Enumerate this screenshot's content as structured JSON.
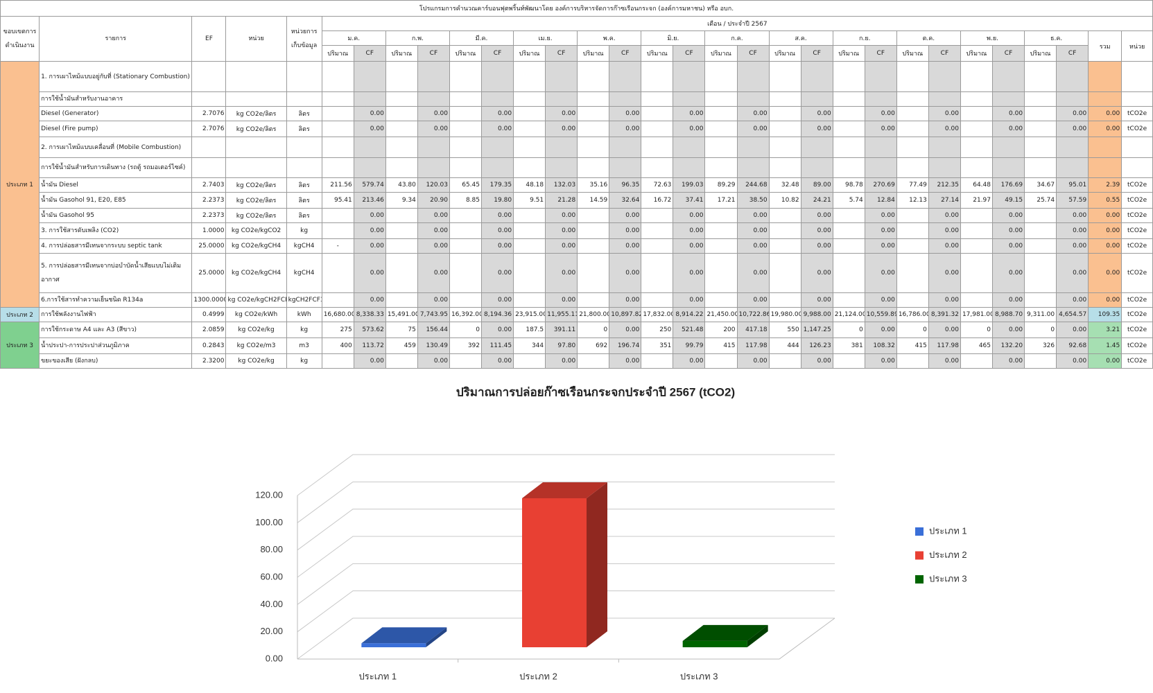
{
  "table": {
    "title": "โปรแกรมการคำนวณคาร์บอนฟุตพริ้นท์พัฒนาโดย องค์การบริหารจัดการก๊าซเรือนกระจก (องค์การมหาชน) หรือ อบก.",
    "period": "เดือน / ประจำปี 2567",
    "headers": {
      "scope": "ขอบเขตการดำเนินงาน",
      "item": "รายการ",
      "ef": "EF",
      "unit": "หน่วย",
      "data_unit": "หน่วยการเก็บข้อมูล",
      "qty": "ปริมาณ",
      "cf": "CF",
      "total": "รวม",
      "total_unit": "หน่วย"
    },
    "months": [
      "ม.ค.",
      "ก.พ.",
      "มี.ค.",
      "เม.ย.",
      "พ.ค.",
      "มิ.ย.",
      "ก.ค.",
      "ส.ค.",
      "ก.ย.",
      "ต.ค.",
      "พ.ย.",
      "ธ.ค."
    ],
    "groups": [
      {
        "scope": "ประเภท 1",
        "rows": [
          {
            "item": "1. การเผาไหม้แบบอยู่กับที่ (Stationary Combustion)"
          },
          {
            "item": "การใช้น้ำมันสำหรับงานอาคาร"
          },
          {
            "item": "Diesel (Generator)",
            "ef": "2.7076",
            "unit": "kg CO2e/ลิตร",
            "data_unit": "ลิตร",
            "qty": [
              null,
              null,
              null,
              null,
              null,
              null,
              null,
              null,
              null,
              null,
              null,
              null
            ],
            "cf": [
              "0.00",
              "0.00",
              "0.00",
              "0.00",
              "0.00",
              "0.00",
              "0.00",
              "0.00",
              "0.00",
              "0.00",
              "0.00",
              "0.00"
            ],
            "total": "0.00",
            "total_unit": "tCO2e"
          },
          {
            "item": "Diesel (Fire pump)",
            "ef": "2.7076",
            "unit": "kg CO2e/ลิตร",
            "data_unit": "ลิตร",
            "qty": [
              null,
              null,
              null,
              null,
              null,
              null,
              null,
              null,
              null,
              null,
              null,
              null
            ],
            "cf": [
              "0.00",
              "0.00",
              "0.00",
              "0.00",
              "0.00",
              "0.00",
              "0.00",
              "0.00",
              "0.00",
              "0.00",
              "0.00",
              "0.00"
            ],
            "total": "0.00",
            "total_unit": "tCO2e"
          },
          {
            "item": "2. การเผาไหม้แบบเคลื่อนที่ (Mobile Combustion)"
          },
          {
            "item": "การใช้น้ำมันสำหรับการเดินทาง (รถตู้ รถมอเตอร์ไซค์)"
          },
          {
            "item": "น้ำมัน Diesel",
            "ef": "2.7403",
            "unit": "kg CO2e/ลิตร",
            "data_unit": "ลิตร",
            "qty": [
              "211.56",
              "43.80",
              "65.45",
              "48.18",
              "35.16",
              "72.63",
              "89.29",
              "32.48",
              "98.78",
              "77.49",
              "64.48",
              "34.67"
            ],
            "cf": [
              "579.74",
              "120.03",
              "179.35",
              "132.03",
              "96.35",
              "199.03",
              "244.68",
              "89.00",
              "270.69",
              "212.35",
              "176.69",
              "95.01"
            ],
            "total": "2.39",
            "total_unit": "tCO2e"
          },
          {
            "item": "น้ำมัน Gasohol 91, E20, E85",
            "ef": "2.2373",
            "unit": "kg CO2e/ลิตร",
            "data_unit": "ลิตร",
            "qty": [
              "95.41",
              "9.34",
              "8.85",
              "9.51",
              "14.59",
              "16.72",
              "17.21",
              "10.82",
              "5.74",
              "12.13",
              "21.97",
              "25.74"
            ],
            "cf": [
              "213.46",
              "20.90",
              "19.80",
              "21.28",
              "32.64",
              "37.41",
              "38.50",
              "24.21",
              "12.84",
              "27.14",
              "49.15",
              "57.59"
            ],
            "total": "0.55",
            "total_unit": "tCO2e"
          },
          {
            "item": "น้ำมัน Gasohol 95",
            "ef": "2.2373",
            "unit": "kg CO2e/ลิตร",
            "data_unit": "ลิตร",
            "qty": [
              null,
              null,
              null,
              null,
              null,
              null,
              null,
              null,
              null,
              null,
              null,
              null
            ],
            "cf": [
              "0.00",
              "0.00",
              "0.00",
              "0.00",
              "0.00",
              "0.00",
              "0.00",
              "0.00",
              "0.00",
              "0.00",
              "0.00",
              "0.00"
            ],
            "total": "0.00",
            "total_unit": "tCO2e"
          },
          {
            "item": "3. การใช้สารดับเพลิง (CO2)",
            "ef": "1.0000",
            "unit": "kg CO2e/kgCO2",
            "data_unit": "kg",
            "qty": [
              null,
              null,
              null,
              null,
              null,
              null,
              null,
              null,
              null,
              null,
              null,
              null
            ],
            "cf": [
              "0.00",
              "0.00",
              "0.00",
              "0.00",
              "0.00",
              "0.00",
              "0.00",
              "0.00",
              "0.00",
              "0.00",
              "0.00",
              "0.00"
            ],
            "total": "0.00",
            "total_unit": "tCO2e"
          },
          {
            "item": "4. การปล่อยสารมีเทนจากระบบ septic tank",
            "ef": "25.0000",
            "unit": "kg CO2e/kgCH4",
            "data_unit": "kgCH4",
            "qty": [
              "-",
              null,
              null,
              null,
              null,
              null,
              null,
              null,
              null,
              null,
              null,
              null
            ],
            "cf": [
              "0.00",
              "0.00",
              "0.00",
              "0.00",
              "0.00",
              "0.00",
              "0.00",
              "0.00",
              "0.00",
              "0.00",
              "0.00",
              "0.00"
            ],
            "total": "0.00",
            "total_unit": "tCO2e"
          },
          {
            "item": "5. การปล่อยสารมีเทนจากบ่อบำบัดน้ำเสียแบบไม่เติมอากาศ",
            "ef": "25.0000",
            "unit": "kg CO2e/kgCH4",
            "data_unit": "kgCH4",
            "qty": [
              null,
              null,
              null,
              null,
              null,
              null,
              null,
              null,
              null,
              null,
              null,
              null
            ],
            "cf": [
              "0.00",
              "0.00",
              "0.00",
              "0.00",
              "0.00",
              "0.00",
              "0.00",
              "0.00",
              "0.00",
              "0.00",
              "0.00",
              "0.00"
            ],
            "total": "0.00",
            "total_unit": "tCO2e"
          },
          {
            "item": "6.การใช้สารทำความเย็นชนิด R134a",
            "ef": "1300.0000",
            "unit": "kg CO2e/kgCH2FCF3",
            "data_unit": "kgCH2FCF3",
            "qty": [
              null,
              null,
              null,
              null,
              null,
              null,
              null,
              null,
              null,
              null,
              null,
              null
            ],
            "cf": [
              "0.00",
              "0.00",
              "0.00",
              "0.00",
              "0.00",
              "0.00",
              "0.00",
              "0.00",
              "0.00",
              "0.00",
              "0.00",
              "0.00"
            ],
            "total": "0.00",
            "total_unit": "tCO2e"
          }
        ]
      },
      {
        "scope": "ประเภท 2",
        "rows": [
          {
            "item": "การใช้พลังงานไฟฟ้า",
            "ef": "0.4999",
            "unit": "kg CO2e/kWh",
            "data_unit": "kWh",
            "qty": [
              "16,680.00",
              "15,491.00",
              "16,392.00",
              "23,915.00",
              "21,800.00",
              "17,832.00",
              "21,450.00",
              "19,980.00",
              "21,124.00",
              "16,786.00",
              "17,981.00",
              "9,311.00"
            ],
            "cf": [
              "8,338.33",
              "7,743.95",
              "8,194.36",
              "11,955.11",
              "10,897.82",
              "8,914.22",
              "10,722.86",
              "9,988.00",
              "10,559.89",
              "8,391.32",
              "8,988.70",
              "4,654.57"
            ],
            "total": "109.35",
            "total_unit": "tCO2e"
          }
        ]
      },
      {
        "scope": "ประเภท 3",
        "rows": [
          {
            "item": "การใช้กระดาษ A4 และ A3 (สีขาว)",
            "ef": "2.0859",
            "unit": "kg CO2e/kg",
            "data_unit": "kg",
            "qty": [
              "275",
              "75",
              "0",
              "187.5",
              "0",
              "250",
              "200",
              "550",
              "0",
              "0",
              "0",
              "0"
            ],
            "cf": [
              "573.62",
              "156.44",
              "0.00",
              "391.11",
              "0.00",
              "521.48",
              "417.18",
              "1,147.25",
              "0.00",
              "0.00",
              "0.00",
              "0.00"
            ],
            "total": "3.21",
            "total_unit": "tCO2e"
          },
          {
            "item": "น้ำประปา-การประปาส่วนภูมิภาค",
            "ef": "0.2843",
            "unit": "kg CO2e/m3",
            "data_unit": "m3",
            "qty": [
              "400",
              "459",
              "392",
              "344",
              "692",
              "351",
              "415",
              "444",
              "381",
              "415",
              "465",
              "326"
            ],
            "cf": [
              "113.72",
              "130.49",
              "111.45",
              "97.80",
              "196.74",
              "99.79",
              "117.98",
              "126.23",
              "108.32",
              "117.98",
              "132.20",
              "92.68"
            ],
            "total": "1.45",
            "total_unit": "tCO2e"
          },
          {
            "item": "ขยะของเสีย (ฝังกลบ)",
            "ef": "2.3200",
            "unit": "kg CO2e/kg",
            "data_unit": "kg",
            "qty": [
              null,
              null,
              null,
              null,
              null,
              null,
              null,
              null,
              null,
              null,
              null,
              null
            ],
            "cf": [
              "0.00",
              "0.00",
              "0.00",
              "0.00",
              "0.00",
              "0.00",
              "0.00",
              "0.00",
              "0.00",
              "0.00",
              "0.00",
              "0.00"
            ],
            "total": "0.00",
            "total_unit": "tCO2e"
          }
        ]
      }
    ]
  },
  "chart_data": {
    "type": "bar",
    "title": "ปริมาณการปล่อยก๊าซเรือนกระจกประจำปี 2567 (tCO2)",
    "categories": [
      "ประเภท 1",
      "ประเภท 2",
      "ประเภท 3"
    ],
    "values": [
      2.94,
      109.35,
      4.66
    ],
    "colors": [
      "#3a6fd8",
      "#e84033",
      "#006400"
    ],
    "ylim": [
      0,
      120
    ],
    "yticks": [
      {
        "value": 0,
        "label": "0.00"
      },
      {
        "value": 20,
        "label": "20.00"
      },
      {
        "value": 40,
        "label": "40.00"
      },
      {
        "value": 60,
        "label": "60.00"
      },
      {
        "value": 80,
        "label": "80.00"
      },
      {
        "value": 100,
        "label": "100.00"
      },
      {
        "value": 120,
        "label": "120.00"
      }
    ],
    "grid": true,
    "legend": "right",
    "bar_3d": true
  }
}
